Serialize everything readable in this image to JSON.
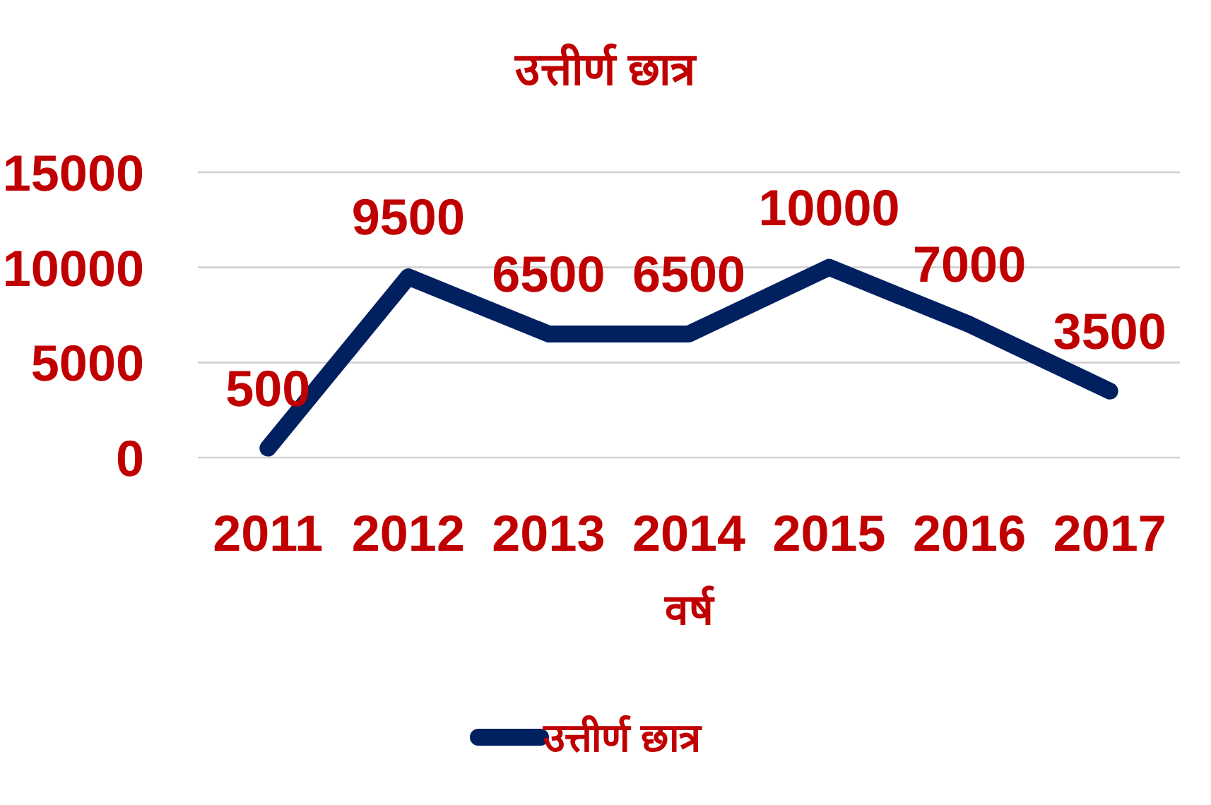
{
  "chart_data": {
    "type": "line",
    "title": "उत्तीर्ण छात्र",
    "xlabel": "वर्ष",
    "categories": [
      "2011",
      "2012",
      "2013",
      "2014",
      "2015",
      "2016",
      "2017"
    ],
    "series": [
      {
        "name": "उत्तीर्ण छात्र",
        "color": "#002060",
        "values": [
          500,
          9500,
          6500,
          6500,
          10000,
          7000,
          3500
        ]
      }
    ],
    "ylim": [
      0,
      15000
    ],
    "yticks": [
      0,
      5000,
      10000,
      15000
    ],
    "grid": "y",
    "legend": "bottom",
    "data_labels": true,
    "marker": "none"
  }
}
